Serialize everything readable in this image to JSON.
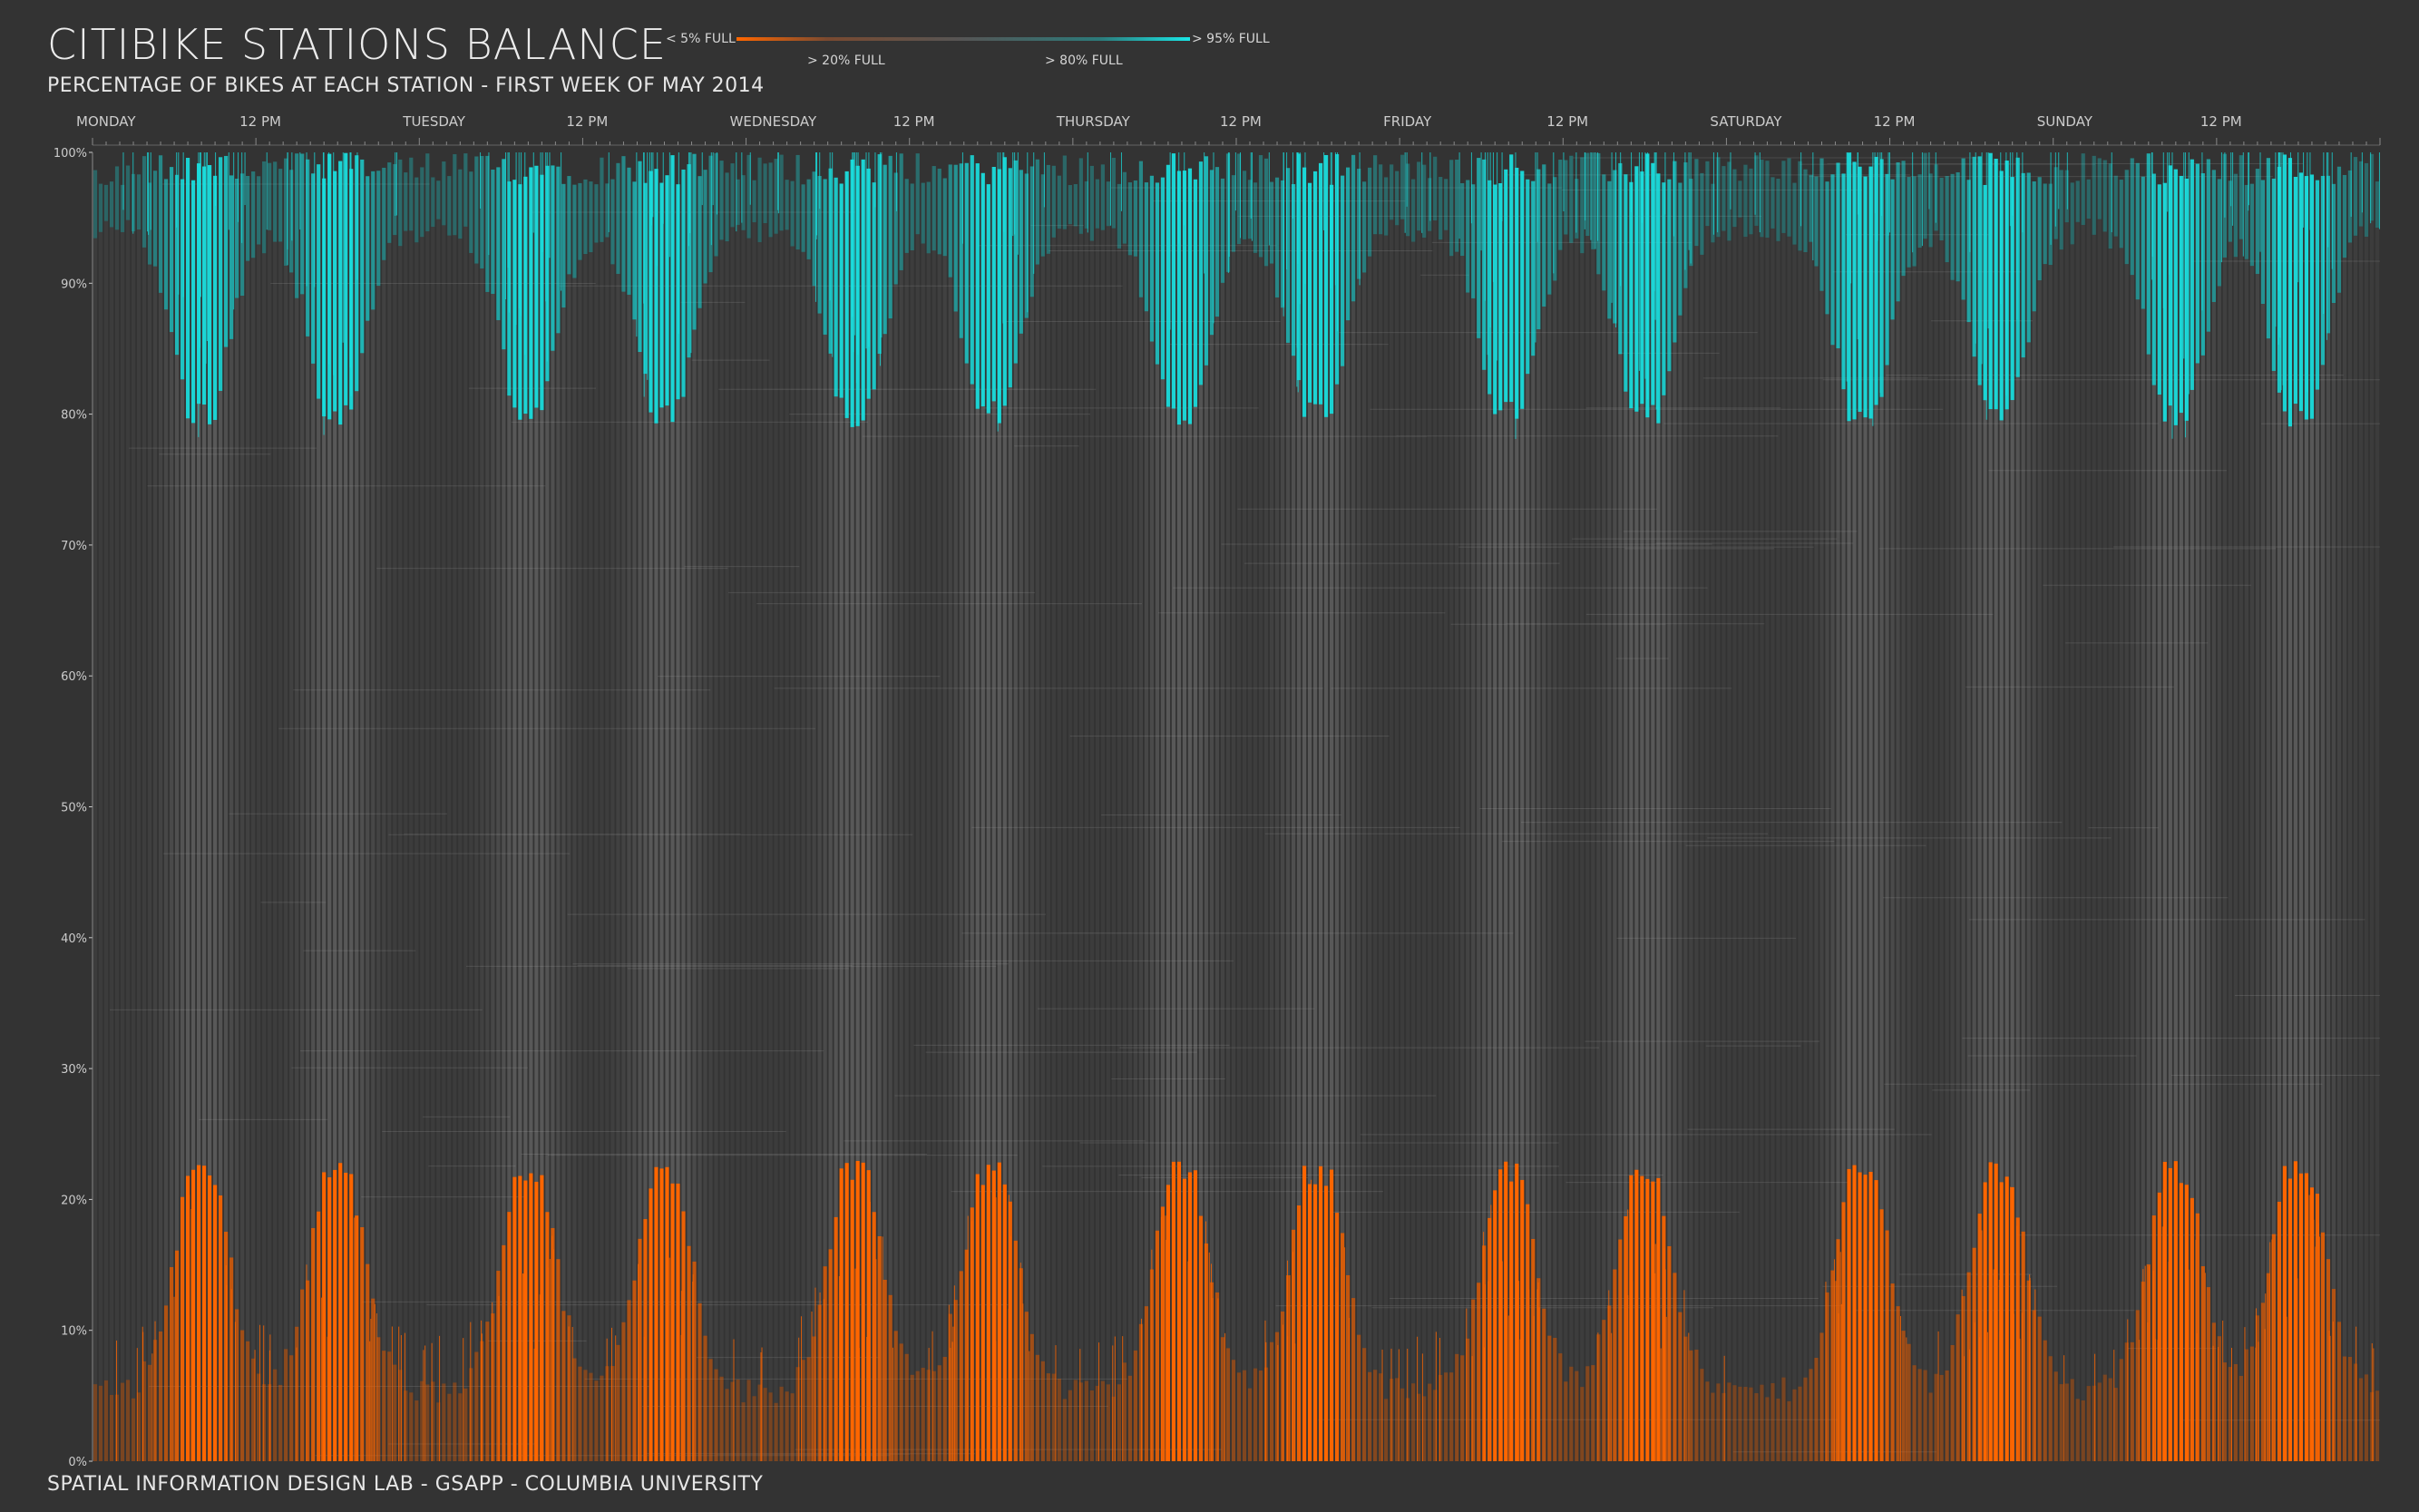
{
  "header": {
    "title": "CITIBIKE STATIONS BALANCE",
    "subtitle": "PERCENTAGE OF BIKES AT EACH STATION - FIRST WEEK OF MAY 2014"
  },
  "legend": {
    "low": "< 5% FULL",
    "mid_low": "> 20% FULL",
    "mid_high": "> 80% FULL",
    "high": "> 95% FULL"
  },
  "colors": {
    "background": "#333333",
    "empty": "#ff6600",
    "neutral": "#c8c8c8",
    "full": "#19e6e6",
    "axis": "#cccccc"
  },
  "footer": {
    "credit": "SPATIAL INFORMATION DESIGN LAB - GSAPP - COLUMBIA UNIVERSITY"
  },
  "chart_data": {
    "type": "heatmap",
    "title": "CITIBIKE STATIONS BALANCE",
    "subtitle": "PERCENTAGE OF BIKES AT EACH STATION - FIRST WEEK OF MAY 2014",
    "x_ticks": [
      "MONDAY",
      "12 PM",
      "TUESDAY",
      "12 PM",
      "WEDNESDAY",
      "12 PM",
      "THURSDAY",
      "12 PM",
      "FRIDAY",
      "12 PM",
      "SATURDAY",
      "12 PM",
      "SUNDAY",
      "12 PM"
    ],
    "x_tick_hours": [
      0,
      12,
      24,
      36,
      48,
      60,
      72,
      84,
      96,
      108,
      120,
      132,
      144,
      156
    ],
    "xlim_hours": [
      0,
      168
    ],
    "y_ticks": [
      "0%",
      "10%",
      "20%",
      "30%",
      "40%",
      "50%",
      "60%",
      "70%",
      "80%",
      "90%",
      "100%"
    ],
    "y_tick_values": [
      0,
      10,
      20,
      30,
      40,
      50,
      60,
      70,
      80,
      90,
      100
    ],
    "ylim": [
      0,
      100
    ],
    "color_scale": [
      {
        "label": "< 5% FULL",
        "color": "#ff6600"
      },
      {
        "label": "> 20% FULL",
        "color": "#c8c8c8"
      },
      {
        "label": "> 80% FULL",
        "color": "#c8c8c8"
      },
      {
        "label": "> 95% FULL",
        "color": "#19e6e6"
      }
    ],
    "activity_peaks_hours": [
      8,
      18,
      32,
      42,
      56,
      66,
      80,
      90,
      104,
      114,
      130,
      140,
      153,
      162
    ],
    "quiet_periods_hours": [
      [
        0,
        6
      ],
      [
        22,
        30
      ],
      [
        46,
        54
      ],
      [
        70,
        78
      ],
      [
        94,
        102
      ],
      [
        118,
        126
      ],
      [
        142,
        150
      ]
    ],
    "grid": false,
    "legend_position": "top"
  }
}
